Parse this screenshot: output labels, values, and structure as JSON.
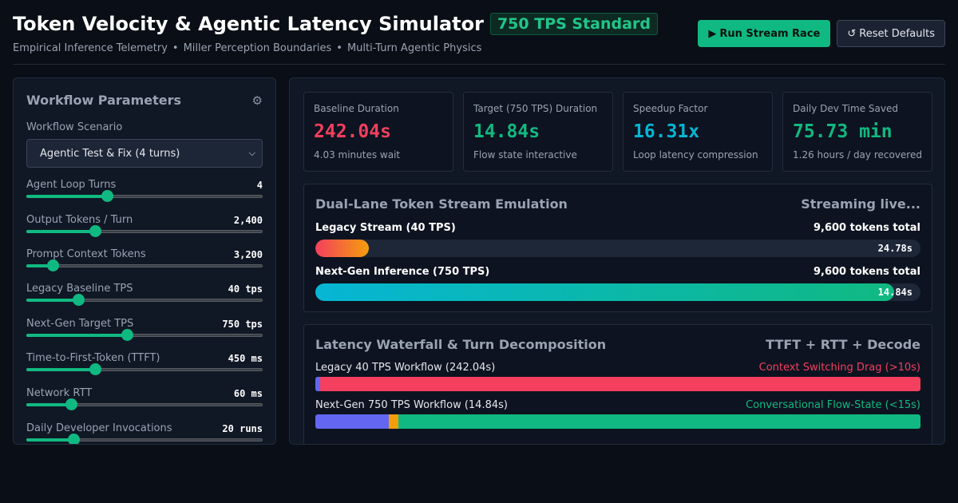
{
  "header": {
    "title": "Token Velocity & Agentic Latency Simulator",
    "badge": "750 TPS Standard",
    "subtitle_parts": [
      "Empirical Inference Telemetry",
      "Miller Perception Boundaries",
      "Multi-Turn Agentic Physics"
    ],
    "separator": "•",
    "run_icon": "▶",
    "run_label": "Run Stream Race",
    "reset_icon": "↺",
    "reset_label": "Reset Defaults"
  },
  "params": {
    "title": "Workflow Parameters",
    "settings_icon": "gear-icon",
    "scenario_label": "Workflow Scenario",
    "scenario_value": "Agentic Test & Fix (4 turns)",
    "sliders": [
      {
        "label": "Agent Loop Turns",
        "value": "4",
        "fraction": 0.34
      },
      {
        "label": "Output Tokens / Turn",
        "value": "2,400",
        "fraction": 0.29
      },
      {
        "label": "Prompt Context Tokens",
        "value": "3,200",
        "fraction": 0.11
      },
      {
        "label": "Legacy Baseline TPS",
        "value": "40 tps",
        "fraction": 0.22
      },
      {
        "label": "Next-Gen Target TPS",
        "value": "750 tps",
        "fraction": 0.425
      },
      {
        "label": "Time-to-First-Token (TTFT)",
        "value": "450 ms",
        "fraction": 0.29
      },
      {
        "label": "Network RTT",
        "value": "60 ms",
        "fraction": 0.19
      },
      {
        "label": "Daily Developer Invocations",
        "value": "20 runs",
        "fraction": 0.2
      }
    ]
  },
  "stats": [
    {
      "label": "Baseline Duration",
      "value": "242.04s",
      "sub": "4.03 minutes wait",
      "color": "#f43f5e"
    },
    {
      "label": "Target (750 TPS) Duration",
      "value": "14.84s",
      "sub": "Flow state interactive",
      "color": "#10b981"
    },
    {
      "label": "Speedup Factor",
      "value": "16.31x",
      "sub": "Loop latency compression",
      "color": "#06b6d4"
    },
    {
      "label": "Daily Dev Time Saved",
      "value": "75.73 min",
      "sub": "1.26 hours / day recovered",
      "color": "#10b981"
    }
  ],
  "stream": {
    "title": "Dual-Lane Token Stream Emulation",
    "status": "Streaming live...",
    "lanes": [
      {
        "name": "Legacy Stream (40 TPS)",
        "total": "9,600 tokens total",
        "time": "24.78s",
        "progress": 0.088
      },
      {
        "name": "Next-Gen Inference (750 TPS)",
        "total": "9,600 tokens total",
        "time": "14.84s",
        "progress": 0.957
      }
    ]
  },
  "waterfall": {
    "title": "Latency Waterfall & Turn Decomposition",
    "legend": "TTFT + RTT + Decode",
    "rows": [
      {
        "name": "Legacy 40 TPS Workflow (242.04s)",
        "note": "Context Switching Drag (>10s)",
        "note_color": "#f43f5e",
        "segments": [
          {
            "share": 0.0074,
            "color": "#6366f1"
          },
          {
            "share": 0.001,
            "color": "#f59e0b"
          },
          {
            "share": 0.9916,
            "color": "#f43f5e"
          }
        ]
      },
      {
        "name": "Next-Gen 750 TPS Workflow (14.84s)",
        "note": "Conversational Flow-State (<15s)",
        "note_color": "#10b981",
        "segments": [
          {
            "share": 0.1213,
            "color": "#6366f1"
          },
          {
            "share": 0.0162,
            "color": "#f59e0b"
          },
          {
            "share": 0.8625,
            "color": "#10b981"
          }
        ]
      }
    ]
  }
}
